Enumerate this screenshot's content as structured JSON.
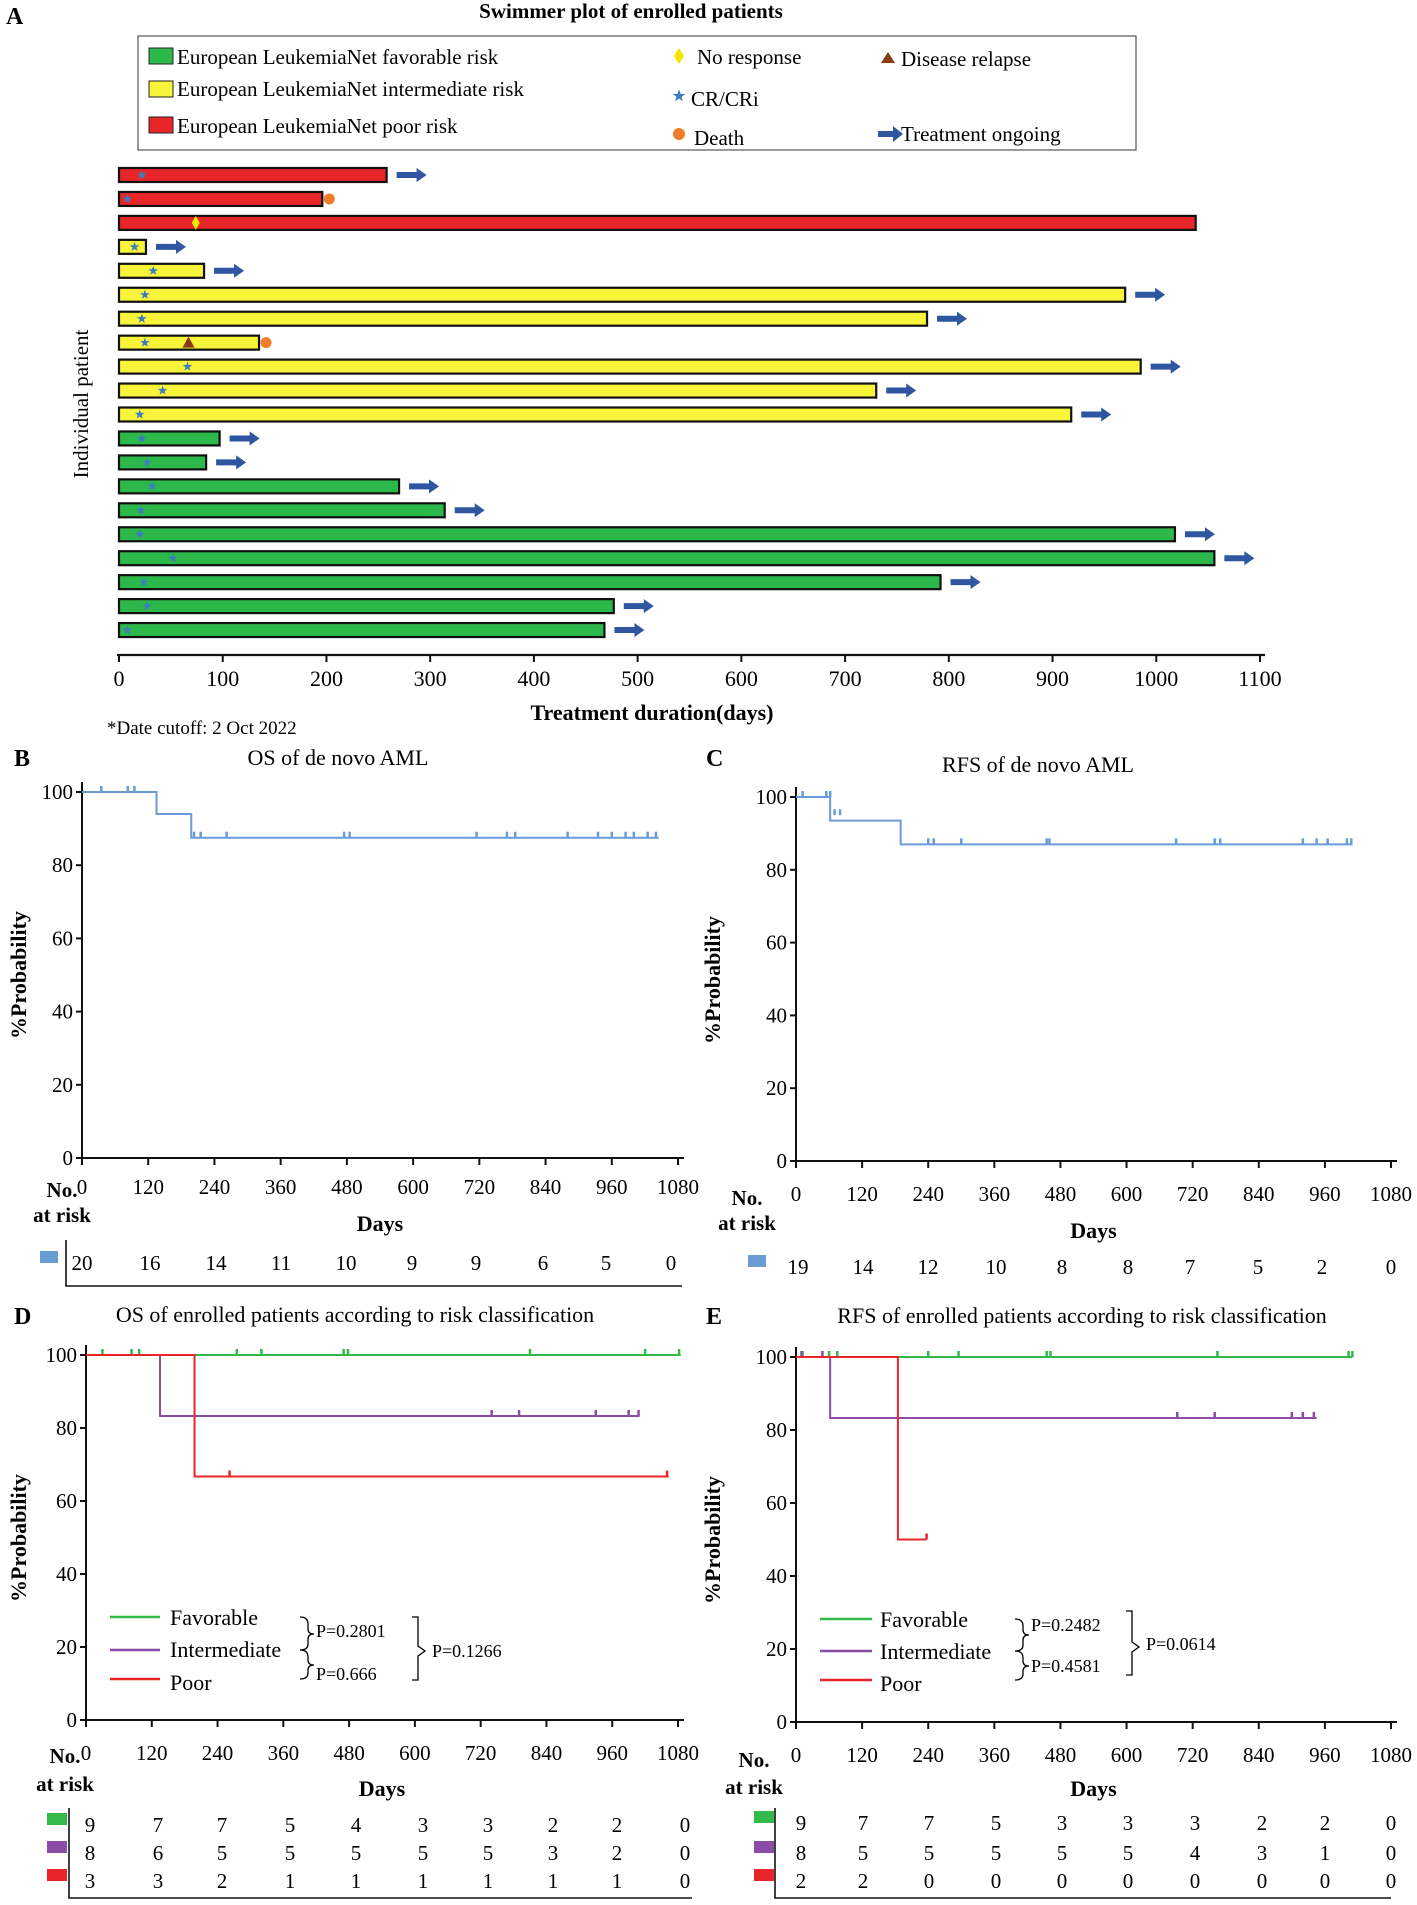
{
  "colors": {
    "favorable": "#2db84b",
    "intermediate": "#f7f43a",
    "poor": "#e8262a",
    "cr": "#3a7ec1",
    "noresp": "#f2e600",
    "relapse": "#8b3a10",
    "death": "#f07e28",
    "arrow": "#2e56a1",
    "km_all": "#6a9bd4",
    "km_fav": "#33b84a",
    "km_int": "#8a4ca6",
    "km_poor": "#e8262a"
  },
  "panelA": {
    "label": "A",
    "legend": {
      "favorable": "European LeukemiaNet favorable risk",
      "intermediate": "European LeukemiaNet intermediate risk",
      "poor": "European LeukemiaNet poor risk",
      "noresp": "No response",
      "cr": "CR/CRi",
      "death": "Death",
      "relapse": "Disease relapse",
      "ongoing": "Treatment ongoing"
    },
    "cutoff_note": "*Date cutoff: 2 Oct 2022"
  },
  "panelB": {
    "label": "B"
  },
  "panelC": {
    "label": "C"
  },
  "panelD": {
    "label": "D",
    "legend": {
      "fav": "Favorable",
      "int": "Intermediate",
      "poor": "Poor"
    },
    "pvals": {
      "p1": "P=0.2801",
      "p2": "P=0.666",
      "p3": "P=0.1266"
    }
  },
  "panelE": {
    "label": "E",
    "legend": {
      "fav": "Favorable",
      "int": "Intermediate",
      "poor": "Poor"
    },
    "pvals": {
      "p1": "P=0.2482",
      "p2": "P=0.4581",
      "p3": "P=0.0614"
    }
  },
  "risk_heading": {
    "line1": "No.",
    "line2": "at risk"
  },
  "chart_data": [
    {
      "id": "A",
      "type": "bar",
      "title": "Swimmer plot of enrolled patients",
      "xlabel": "Treatment duration(days)",
      "ylabel": "Individual patient",
      "xlim": [
        0,
        1100
      ],
      "xticks": [
        0,
        100,
        200,
        300,
        400,
        500,
        600,
        700,
        800,
        900,
        1000,
        1100
      ],
      "patients": [
        {
          "risk": "poor",
          "duration": 258,
          "cr": 22,
          "ongoing": true
        },
        {
          "risk": "poor",
          "duration": 196,
          "cr": 8,
          "death": true
        },
        {
          "risk": "poor",
          "duration": 1038,
          "noresp": 74
        },
        {
          "risk": "intermediate",
          "duration": 26,
          "cr": 15,
          "ongoing": true
        },
        {
          "risk": "intermediate",
          "duration": 82,
          "cr": 33,
          "ongoing": true
        },
        {
          "risk": "intermediate",
          "duration": 970,
          "cr": 25,
          "ongoing": true
        },
        {
          "risk": "intermediate",
          "duration": 779,
          "cr": 22,
          "ongoing": true
        },
        {
          "risk": "intermediate",
          "duration": 135,
          "cr": 25,
          "relapse": 67,
          "death": true
        },
        {
          "risk": "intermediate",
          "duration": 985,
          "cr": 66,
          "ongoing": true
        },
        {
          "risk": "intermediate",
          "duration": 730,
          "cr": 42,
          "ongoing": true
        },
        {
          "risk": "intermediate",
          "duration": 918,
          "cr": 20,
          "ongoing": true
        },
        {
          "risk": "favorable",
          "duration": 97,
          "cr": 22,
          "ongoing": true
        },
        {
          "risk": "favorable",
          "duration": 84,
          "cr": 27,
          "ongoing": true
        },
        {
          "risk": "favorable",
          "duration": 270,
          "cr": 32,
          "ongoing": true
        },
        {
          "risk": "favorable",
          "duration": 314,
          "cr": 21,
          "ongoing": true
        },
        {
          "risk": "favorable",
          "duration": 1018,
          "cr": 20,
          "ongoing": true
        },
        {
          "risk": "favorable",
          "duration": 1056,
          "cr": 52,
          "ongoing": true
        },
        {
          "risk": "favorable",
          "duration": 792,
          "cr": 24,
          "ongoing": true
        },
        {
          "risk": "favorable",
          "duration": 477,
          "cr": 27,
          "ongoing": true
        },
        {
          "risk": "favorable",
          "duration": 468,
          "cr": 8,
          "ongoing": true
        }
      ]
    },
    {
      "id": "B",
      "type": "line",
      "title": "OS of de novo AML",
      "xlabel": "Days",
      "ylabel": "%Probability",
      "xlim": [
        0,
        1080
      ],
      "ylim": [
        0,
        105
      ],
      "xticks": [
        0,
        120,
        240,
        360,
        480,
        600,
        720,
        840,
        960,
        1080
      ],
      "yticks": [
        0,
        20,
        40,
        60,
        80,
        100
      ],
      "series": [
        {
          "name": "All",
          "color_key": "km_all",
          "steps": [
            [
              0,
              100
            ],
            [
              135,
              94
            ],
            [
              198,
              87.5
            ],
            [
              1045,
              87.5
            ]
          ],
          "censors": [
            [
              35,
              100
            ],
            [
              83,
              100
            ],
            [
              95,
              100
            ],
            [
              203,
              87.5
            ],
            [
              215,
              87.5
            ],
            [
              262,
              87.5
            ],
            [
              475,
              87.5
            ],
            [
              485,
              87.5
            ],
            [
              715,
              87.5
            ],
            [
              770,
              87.5
            ],
            [
              785,
              87.5
            ],
            [
              880,
              87.5
            ],
            [
              935,
              87.5
            ],
            [
              960,
              87.5
            ],
            [
              985,
              87.5
            ],
            [
              1000,
              87.5
            ],
            [
              1025,
              87.5
            ],
            [
              1040,
              87.5
            ]
          ]
        }
      ],
      "risk_table": [
        {
          "color_key": "km_all",
          "counts": [
            "20",
            "16",
            "14",
            "11",
            "10",
            "9",
            "9",
            "6",
            "5",
            "0"
          ]
        }
      ]
    },
    {
      "id": "C",
      "type": "line",
      "title": "RFS of de novo AML",
      "xlabel": "Days",
      "ylabel": "%Probability",
      "xlim": [
        0,
        1080
      ],
      "ylim": [
        0,
        105
      ],
      "xticks": [
        0,
        120,
        240,
        360,
        480,
        600,
        720,
        840,
        960,
        1080
      ],
      "yticks": [
        0,
        20,
        40,
        60,
        80,
        100
      ],
      "series": [
        {
          "name": "All",
          "color_key": "km_all",
          "steps": [
            [
              0,
              100
            ],
            [
              62,
              93.5
            ],
            [
              190,
              87
            ],
            [
              1010,
              87
            ]
          ],
          "censors": [
            [
              12,
              100
            ],
            [
              55,
              100
            ],
            [
              62,
              100
            ],
            [
              70,
              95
            ],
            [
              80,
              95
            ],
            [
              240,
              87
            ],
            [
              250,
              87
            ],
            [
              300,
              87
            ],
            [
              455,
              87
            ],
            [
              460,
              87
            ],
            [
              690,
              87
            ],
            [
              760,
              87
            ],
            [
              770,
              87
            ],
            [
              920,
              87
            ],
            [
              945,
              87
            ],
            [
              965,
              87
            ],
            [
              1000,
              87
            ],
            [
              1008,
              87
            ]
          ]
        }
      ],
      "risk_table": [
        {
          "color_key": "km_all",
          "counts": [
            "19",
            "14",
            "12",
            "10",
            "8",
            "8",
            "7",
            "5",
            "2",
            "0"
          ]
        }
      ]
    },
    {
      "id": "D",
      "type": "line",
      "title": "OS of enrolled patients according to risk classification",
      "xlabel": "Days",
      "ylabel": "%Probability",
      "xlim": [
        0,
        1080
      ],
      "ylim": [
        0,
        105
      ],
      "xticks": [
        0,
        120,
        240,
        360,
        480,
        600,
        720,
        840,
        960,
        1080
      ],
      "yticks": [
        0,
        20,
        40,
        60,
        80,
        100
      ],
      "series": [
        {
          "name": "Favorable",
          "color_key": "km_fav",
          "steps": [
            [
              0,
              100
            ],
            [
              1085,
              100
            ]
          ],
          "censors": [
            [
              30,
              100
            ],
            [
              83,
              100
            ],
            [
              97,
              100
            ],
            [
              275,
              100
            ],
            [
              320,
              100
            ],
            [
              470,
              100
            ],
            [
              478,
              100
            ],
            [
              810,
              100
            ],
            [
              1020,
              100
            ],
            [
              1082,
              100
            ]
          ]
        },
        {
          "name": "Intermediate",
          "color_key": "km_int",
          "steps": [
            [
              0,
              100
            ],
            [
              135,
              83.3
            ],
            [
              1010,
              83.3
            ]
          ],
          "censors": [
            [
              740,
              83.3
            ],
            [
              790,
              83.3
            ],
            [
              930,
              83.3
            ],
            [
              990,
              83.3
            ],
            [
              1008,
              83.3
            ]
          ]
        },
        {
          "name": "Poor",
          "color_key": "km_poor",
          "steps": [
            [
              0,
              100
            ],
            [
              198,
              66.7
            ],
            [
              1063,
              66.7
            ]
          ],
          "censors": [
            [
              262,
              66.7
            ],
            [
              1060,
              66.7
            ]
          ]
        }
      ],
      "risk_table": [
        {
          "color_key": "km_fav",
          "counts": [
            "9",
            "7",
            "7",
            "5",
            "4",
            "3",
            "3",
            "2",
            "2",
            "0"
          ]
        },
        {
          "color_key": "km_int",
          "counts": [
            "8",
            "6",
            "5",
            "5",
            "5",
            "5",
            "5",
            "3",
            "2",
            "0"
          ]
        },
        {
          "color_key": "km_poor",
          "counts": [
            "3",
            "3",
            "2",
            "1",
            "1",
            "1",
            "1",
            "1",
            "1",
            "0"
          ]
        }
      ]
    },
    {
      "id": "E",
      "type": "line",
      "title": "RFS of enrolled patients according to risk classification",
      "xlabel": "Days",
      "ylabel": "%Probability",
      "xlim": [
        0,
        1080
      ],
      "ylim": [
        0,
        105
      ],
      "xticks": [
        0,
        120,
        240,
        360,
        480,
        600,
        720,
        840,
        960,
        1080
      ],
      "yticks": [
        0,
        20,
        40,
        60,
        80,
        100
      ],
      "series": [
        {
          "name": "Favorable",
          "color_key": "km_fav",
          "steps": [
            [
              0,
              100
            ],
            [
              1010,
              100
            ]
          ],
          "censors": [
            [
              12,
              100
            ],
            [
              60,
              100
            ],
            [
              75,
              100
            ],
            [
              240,
              100
            ],
            [
              295,
              100
            ],
            [
              455,
              100
            ],
            [
              462,
              100
            ],
            [
              765,
              100
            ],
            [
              1003,
              100
            ],
            [
              1010,
              100
            ]
          ]
        },
        {
          "name": "Intermediate",
          "color_key": "km_int",
          "steps": [
            [
              0,
              100
            ],
            [
              62,
              83.3
            ],
            [
              945,
              83.3
            ]
          ],
          "censors": [
            [
              10,
              100
            ],
            [
              48,
              100
            ],
            [
              692,
              83.3
            ],
            [
              760,
              83.3
            ],
            [
              900,
              83.3
            ],
            [
              920,
              83.3
            ],
            [
              940,
              83.3
            ]
          ]
        },
        {
          "name": "Poor",
          "color_key": "km_poor",
          "steps": [
            [
              0,
              100
            ],
            [
              185,
              50
            ],
            [
              237,
              50
            ]
          ],
          "censors": [
            [
              237,
              50
            ]
          ]
        }
      ],
      "risk_table": [
        {
          "color_key": "km_fav",
          "counts": [
            "9",
            "7",
            "7",
            "5",
            "3",
            "3",
            "3",
            "2",
            "2",
            "0"
          ]
        },
        {
          "color_key": "km_int",
          "counts": [
            "8",
            "5",
            "5",
            "5",
            "5",
            "5",
            "4",
            "3",
            "1",
            "0"
          ]
        },
        {
          "color_key": "km_poor",
          "counts": [
            "2",
            "2",
            "0",
            "0",
            "0",
            "0",
            "0",
            "0",
            "0",
            "0"
          ]
        }
      ]
    }
  ]
}
